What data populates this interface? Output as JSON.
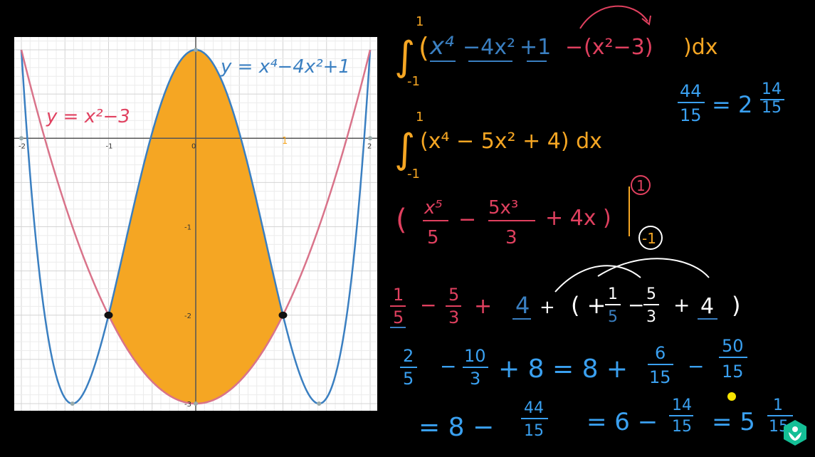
{
  "chart_data": {
    "type": "line",
    "xlim": [
      -2,
      2
    ],
    "ylim": [
      -3,
      1
    ],
    "grid": true,
    "x_ticks": [
      {
        "v": -2,
        "label": "-2"
      },
      {
        "v": -1,
        "label": "-1"
      },
      {
        "v": 0,
        "label": "0"
      },
      {
        "v": 1,
        "label": ""
      },
      {
        "v": 2,
        "label": "2"
      }
    ],
    "y_ticks": [
      {
        "v": -1,
        "label": "-1"
      },
      {
        "v": -2,
        "label": "-2"
      },
      {
        "v": -3,
        "label": "-3"
      }
    ],
    "series": [
      {
        "name": "y = x⁴ − 4x² + 1",
        "formula": "x^4 - 4x^2 + 1",
        "color": "#3a7fc1"
      },
      {
        "name": "y = x² − 3",
        "formula": "x^2 - 3",
        "color": "#d9738a"
      }
    ],
    "shaded_region": {
      "x_from": -1,
      "x_to": 1,
      "color": "#f5a623"
    },
    "intersections": [
      [
        -1,
        -2
      ],
      [
        1,
        -2
      ]
    ],
    "annotations": {
      "blue_curve_label": "y = x⁴−4x²+1",
      "pink_curve_label": "y = x²−3",
      "orange_one_label": "1"
    }
  },
  "notes": {
    "line1": {
      "upper": "1",
      "lower": "-1",
      "body_open": "(",
      "t1": "x⁴",
      "t2": "−4x²",
      "t3": "+1",
      "minus": "−",
      "t4": "(x²−3)",
      "tail": ")dx"
    },
    "line2": {
      "upper": "1",
      "lower": "-1",
      "body": "(x⁴ − 5x² + 4) dx"
    },
    "line3": {
      "lp": "(",
      "n1": "x⁵",
      "d1": "5",
      "m1": "−",
      "n2": "5x³",
      "d2": "3",
      "tail": "+ 4x )",
      "upper": "1",
      "lower": "-1"
    },
    "line4": {
      "f1n": "1",
      "f1d": "5",
      "m1": "−",
      "f2n": "5",
      "f2d": "3",
      "p1": "+",
      "four": "4",
      "p2": "+",
      "paren": "( + ",
      "f3n": "1",
      "f3d": "5",
      "m2": "−",
      "f4n": "5",
      "f4d": "3",
      "p3": "+",
      "four2": "4",
      "close": ")"
    },
    "line5": {
      "f1n": "2",
      "f1d": "5",
      "m1": "−",
      "f2n": "10",
      "f2d": "3",
      "rest": "+ 8  =  8 +",
      "f3n": "6",
      "f3d": "15",
      "m2": "−",
      "f4n": "50",
      "f4d": "15"
    },
    "line6": {
      "a": "= 8 −",
      "f1n": "44",
      "f1d": "15",
      "b": "= 6 −",
      "f2n": "14",
      "f2d": "15",
      "c": "= 5",
      "f3n": "1",
      "f3d": "15"
    },
    "side": {
      "fn": "44",
      "fd": "15",
      "eq": "= 2",
      "mn": "14",
      "md": "15"
    }
  },
  "colors": {
    "orange": "#f5a623",
    "blue": "#3a7fc1",
    "pink": "#e0405f",
    "note_blue": "#3aa0f0",
    "white": "#ffffff",
    "yellow": "#f7e400"
  }
}
